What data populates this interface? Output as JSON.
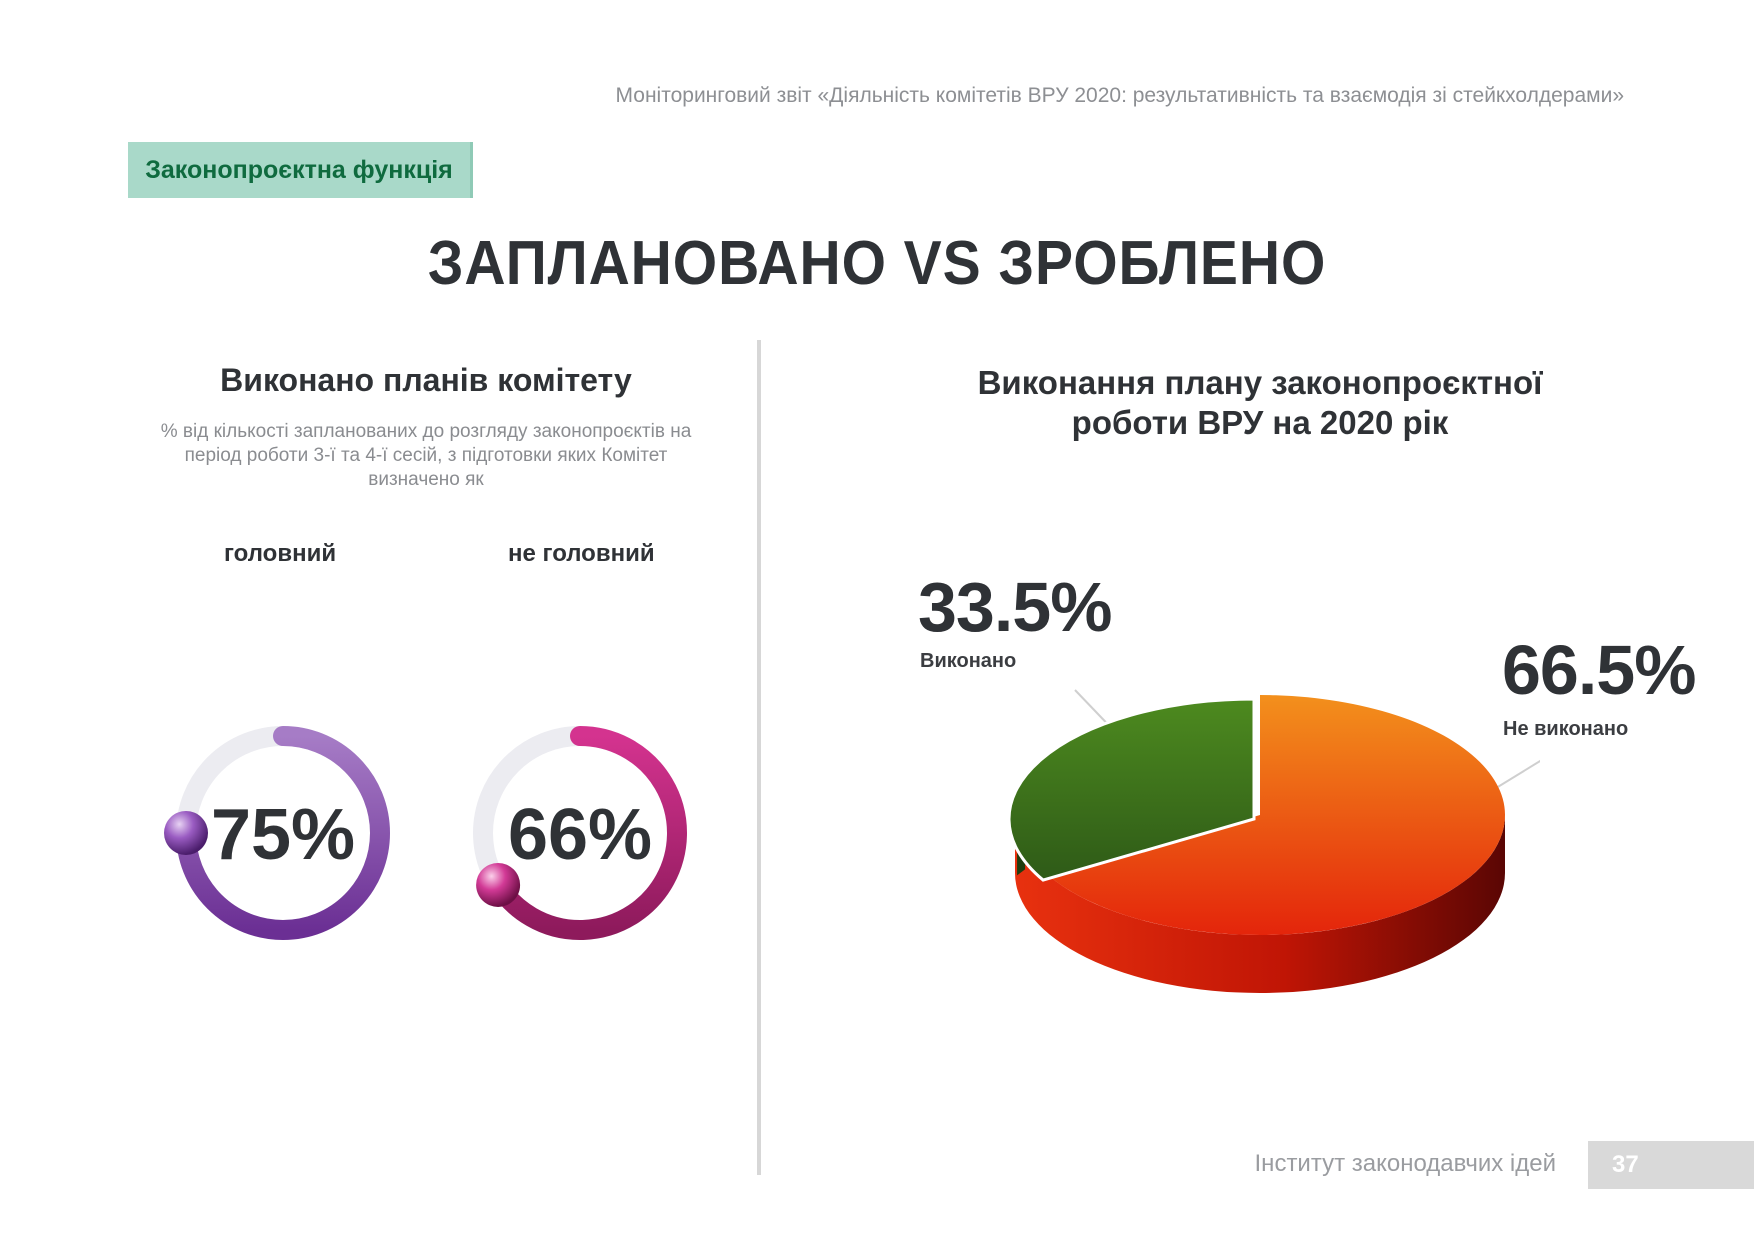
{
  "header": {
    "report_title": "Моніторинговий звіт «Діяльність комітетів ВРУ 2020: результативність та взаємодія зі стейкхолдерами»"
  },
  "section_tag": "Законопроєктна функція",
  "main_title": "ЗАПЛАНОВАНО VS ЗРОБЛЕНО",
  "left": {
    "title": "Виконано планів комітету",
    "subtitle": "% від кількості запланованих до розгляду законопроєктів на період роботи 3-ї та 4-ї сесій, з підготовки яких Комітет визначено як",
    "main_label": "головний",
    "secondary_label": "не головний",
    "main_value": "75%",
    "secondary_value": "66%"
  },
  "right": {
    "title_line1": "Виконання плану законопроєктної",
    "title_line2": "роботи ВРУ на 2020 рік",
    "done_value": "33.5%",
    "done_label": "Виконано",
    "not_done_value": "66.5%",
    "not_done_label": "Не виконано"
  },
  "footer": {
    "org": "Інститут законодавчих ідей",
    "page": "37"
  },
  "colors": {
    "purple": "#7a3a9e",
    "magenta": "#b0257a",
    "green": "#3c7a1c",
    "orange": "#f07a1a",
    "red": "#d41a0a",
    "tag_bg": "#a9d9c9"
  },
  "chart_data": [
    {
      "type": "pie",
      "variant": "progress-ring",
      "title": "головний",
      "categories": [
        "Виконано"
      ],
      "values": [
        75
      ],
      "unit": "%"
    },
    {
      "type": "pie",
      "variant": "progress-ring",
      "title": "не головний",
      "categories": [
        "Виконано"
      ],
      "values": [
        66
      ],
      "unit": "%"
    },
    {
      "type": "pie",
      "variant": "3d",
      "title": "Виконання плану законопроєктної роботи ВРУ на 2020 рік",
      "categories": [
        "Виконано",
        "Не виконано"
      ],
      "values": [
        33.5,
        66.5
      ],
      "unit": "%",
      "colors": [
        "#3c7a1c",
        "#f07a1a"
      ]
    }
  ]
}
